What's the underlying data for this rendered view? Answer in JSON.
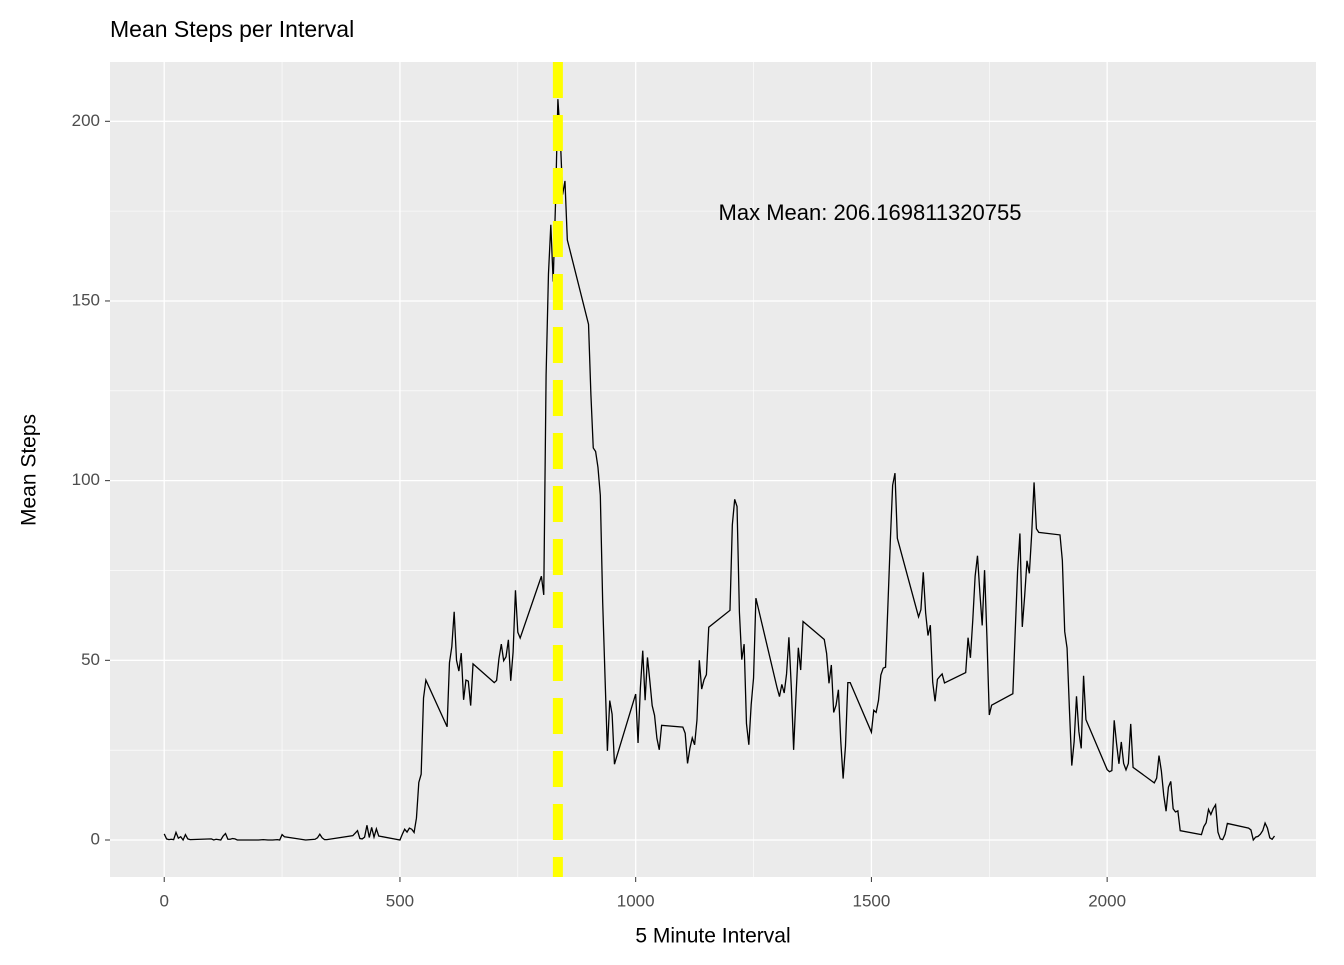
{
  "chart_data": {
    "type": "line",
    "title": "Mean Steps per Interval",
    "x_label": "5 Minute Interval",
    "y_label": "Mean Steps",
    "annotation": "Max Mean: 206.169811320755",
    "vline": 835,
    "vline_color": "#ffff00",
    "color": "#000000",
    "x": [
      0,
      5,
      10,
      15,
      20,
      25,
      30,
      35,
      40,
      45,
      50,
      55,
      100,
      105,
      110,
      115,
      120,
      125,
      130,
      135,
      140,
      145,
      150,
      155,
      200,
      210,
      220,
      230,
      240,
      245,
      250,
      255,
      300,
      310,
      320,
      325,
      330,
      335,
      340,
      345,
      400,
      405,
      410,
      415,
      420,
      425,
      430,
      435,
      440,
      445,
      450,
      455,
      500,
      505,
      510,
      515,
      520,
      525,
      530,
      535,
      540,
      545,
      550,
      555,
      600,
      605,
      610,
      615,
      620,
      625,
      630,
      635,
      640,
      645,
      650,
      655,
      700,
      705,
      710,
      715,
      720,
      725,
      730,
      735,
      740,
      745,
      750,
      755,
      800,
      805,
      810,
      815,
      820,
      825,
      830,
      835,
      840,
      845,
      850,
      855,
      900,
      905,
      910,
      915,
      920,
      925,
      930,
      935,
      940,
      945,
      950,
      955,
      1000,
      1005,
      1010,
      1015,
      1020,
      1025,
      1030,
      1035,
      1040,
      1045,
      1050,
      1055,
      1100,
      1105,
      1110,
      1115,
      1120,
      1125,
      1130,
      1135,
      1140,
      1145,
      1150,
      1155,
      1200,
      1205,
      1210,
      1215,
      1220,
      1225,
      1230,
      1235,
      1240,
      1245,
      1250,
      1255,
      1300,
      1305,
      1310,
      1315,
      1320,
      1325,
      1330,
      1335,
      1340,
      1345,
      1350,
      1355,
      1400,
      1405,
      1410,
      1415,
      1420,
      1425,
      1430,
      1435,
      1440,
      1445,
      1450,
      1455,
      1500,
      1505,
      1510,
      1515,
      1520,
      1525,
      1530,
      1535,
      1540,
      1545,
      1550,
      1555,
      1600,
      1605,
      1610,
      1615,
      1620,
      1625,
      1630,
      1635,
      1640,
      1645,
      1650,
      1655,
      1700,
      1705,
      1710,
      1715,
      1720,
      1725,
      1730,
      1735,
      1740,
      1745,
      1750,
      1755,
      1800,
      1805,
      1810,
      1815,
      1820,
      1825,
      1830,
      1835,
      1840,
      1845,
      1850,
      1855,
      1900,
      1905,
      1910,
      1915,
      1920,
      1925,
      1930,
      1935,
      1940,
      1945,
      1950,
      1955,
      2000,
      2005,
      2010,
      2015,
      2020,
      2025,
      2030,
      2035,
      2040,
      2045,
      2050,
      2055,
      2100,
      2105,
      2110,
      2115,
      2120,
      2125,
      2130,
      2135,
      2140,
      2145,
      2150,
      2155,
      2200,
      2205,
      2210,
      2215,
      2220,
      2225,
      2230,
      2235,
      2240,
      2245,
      2250,
      2255,
      2300,
      2305,
      2310,
      2315,
      2320,
      2325,
      2330,
      2335,
      2340,
      2345,
      2350,
      2355
    ],
    "values": [
      1.7,
      0.3,
      0.1,
      0.2,
      0.1,
      2.1,
      0.5,
      0.9,
      0,
      1.5,
      0.3,
      0.1,
      0.3,
      0,
      0.2,
      0.1,
      0,
      1.1,
      1.8,
      0.2,
      0.2,
      0.4,
      0.3,
      0,
      0,
      0.1,
      0,
      0,
      0.1,
      0,
      1.5,
      0.9,
      0,
      0.1,
      0.2,
      0.6,
      1.6,
      0.6,
      0.1,
      0.1,
      1.2,
      1.9,
      2.6,
      0.4,
      0.3,
      0.8,
      4.1,
      0.7,
      3.5,
      0.8,
      3.1,
      1.1,
      0,
      1.6,
      3.0,
      2.2,
      3.3,
      3.0,
      2.1,
      6.1,
      16,
      18.3,
      39.5,
      44.5,
      31.5,
      49.3,
      53.8,
      63.5,
      50,
      47,
      52,
      39,
      44.5,
      44.2,
      37.4,
      49,
      43.8,
      44.4,
      50.5,
      54.5,
      49.9,
      51,
      55.7,
      44.3,
      52.3,
      69.5,
      57.8,
      56.2,
      73.4,
      68.2,
      129.4,
      157.5,
      171.2,
      155.4,
      177.3,
      206.169811320755,
      195.9,
      179.6,
      183.4,
      167,
      143.5,
      124,
      109.1,
      108.1,
      103.7,
      95.9,
      66.2,
      45.2,
      24.8,
      38.8,
      35,
      21.1,
      40.6,
      27,
      42.4,
      52.7,
      38.9,
      50.8,
      44.3,
      37.4,
      34.7,
      28.3,
      25.1,
      31.9,
      31.4,
      29.7,
      21.3,
      25.5,
      28.4,
      26.5,
      33.4,
      50,
      42,
      44.6,
      46,
      59.2,
      63.9,
      87.7,
      94.8,
      92.8,
      63.4,
      50.2,
      54.5,
      32.4,
      26.5,
      37.7,
      45.1,
      67.3,
      42.3,
      39.9,
      43.3,
      40.9,
      46.2,
      56.4,
      42.8,
      25.1,
      39.9,
      53.5,
      47.3,
      60.8,
      55.8,
      51.9,
      43.6,
      48.7,
      35.5,
      37.5,
      41.8,
      27.5,
      17.1,
      26.1,
      43.8,
      43.8,
      30,
      36.1,
      35.5,
      38.8,
      45.9,
      47.8,
      48.1,
      65.3,
      82.9,
      98.7,
      102.1,
      83.96,
      62.1,
      64.1,
      74.5,
      63.2,
      56.9,
      59.8,
      43.9,
      38.6,
      44.7,
      45.5,
      46.2,
      43.7,
      46.6,
      56.3,
      50.7,
      61.2,
      73.4,
      79.1,
      68.9,
      59.7,
      75.1,
      56.5,
      34.8,
      37.5,
      40.7,
      58,
      74.7,
      85.3,
      59.3,
      67.8,
      77.7,
      74.2,
      85.3,
      99.5,
      86.6,
      85.6,
      84.9,
      77.8,
      58,
      53.4,
      36.3,
      20.7,
      27.4,
      40,
      30.2,
      25.5,
      45.7,
      33.5,
      19.6,
      19,
      19.3,
      33.3,
      26.8,
      21.2,
      27.3,
      21.3,
      19.5,
      21.3,
      32.3,
      20.2,
      15.9,
      17.2,
      23.5,
      19.2,
      12.5,
      8,
      14.7,
      16.3,
      8.7,
      7.8,
      8.1,
      2.6,
      1.5,
      3.7,
      4.8,
      8.5,
      7.1,
      8.7,
      9.8,
      2.2,
      0.3,
      0.1,
      1.6,
      4.6,
      3.3,
      2.8,
      0,
      0.8,
      1,
      1.6,
      2.6,
      4.7,
      3.3,
      0.6,
      0.2,
      1.1
    ],
    "xlim": [
      -115,
      2443
    ],
    "ylim": [
      -10.3,
      216.5
    ],
    "xticks": [
      0,
      500,
      1000,
      1500,
      2000
    ],
    "yticks": [
      0,
      50,
      100,
      150,
      200
    ],
    "grid": true,
    "minor_grid": true
  }
}
